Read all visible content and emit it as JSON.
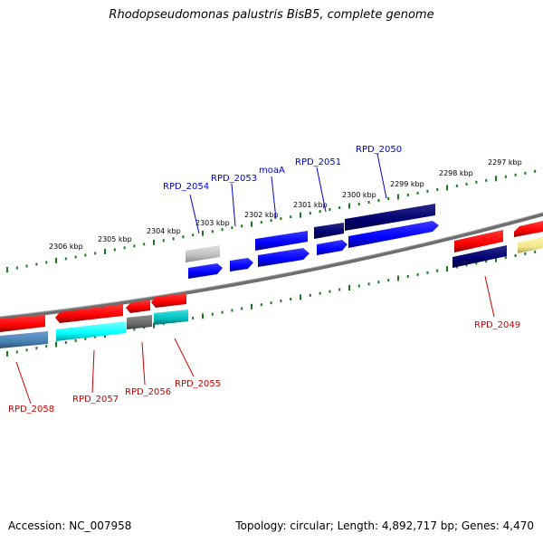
{
  "title": "Rhodopseudomonas palustris BisB5, complete genome",
  "footer": {
    "accession": "Accession: NC_007958",
    "info": "Topology: circular; Length: 4,892,717 bp; Genes: 4,470"
  },
  "scale_labels": [
    "2306 kbp",
    "2305 kbp",
    "2304 kbp",
    "2303 kbp",
    "2302 kbp",
    "2301 kbp",
    "2300 kbp",
    "2299 kbp",
    "2298 kbp",
    "2297 kbp"
  ],
  "gene_labels": [
    "RPD_2054",
    "RPD_2053",
    "moaA",
    "RPD_2051",
    "RPD_2050",
    "RPD_2049",
    "RPD_2058",
    "RPD_2057",
    "RPD_2056",
    "RPD_2055"
  ],
  "colors": {
    "forward_strand": "#ff0000",
    "reverse_strand": "#0000ff",
    "label_forward": "#cc0000",
    "label_reverse": "#0000cc",
    "backbone": "#808080",
    "ticks": "#1a7a1a"
  }
}
